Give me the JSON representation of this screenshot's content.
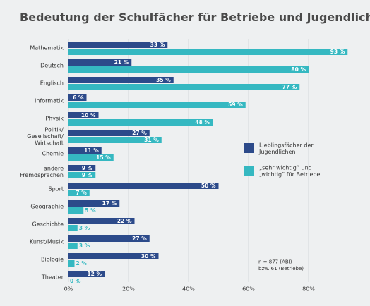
{
  "chart_data": {
    "type": "bar",
    "title": "Bedeutung der Schulfächer für Betriebe und Jugendliche",
    "categories": [
      "Mathematik",
      "Deutsch",
      "Englisch",
      "Informatik",
      "Physik",
      "Politik/\nGesellschaft/\nWirtschaft",
      "Chemie",
      "andere\nFremdsprachen",
      "Sport",
      "Geographie",
      "Geschichte",
      "Kunst/Musik",
      "Biologie",
      "Theater"
    ],
    "series": [
      {
        "name": "Lieblingsfächer der\nJugendlichen",
        "color": "#2c4a8a",
        "values": [
          33,
          21,
          35,
          6,
          10,
          27,
          11,
          9,
          50,
          17,
          22,
          27,
          30,
          12
        ],
        "value_labels": [
          "33 %",
          "21 %",
          "35 %",
          "6 %",
          "10 %",
          "27 %",
          "11 %",
          "9 %",
          "50 %",
          "17 %",
          "22 %",
          "27 %",
          "30 %",
          "12 %"
        ]
      },
      {
        "name": "„sehr wichtig“ und\n„wichtig“ für Betriebe",
        "color": "#35b8c1",
        "values": [
          93,
          80,
          77,
          59,
          48,
          31,
          15,
          9,
          7,
          5,
          3,
          3,
          2,
          0
        ],
        "value_labels": [
          "93 %",
          "80 %",
          "77 %",
          "59 %",
          "48 %",
          "31 %",
          "15 %",
          "9 %",
          "7 %",
          "5 %",
          "3 %",
          "3 %",
          "2 %",
          "0 %"
        ]
      }
    ],
    "xlim": [
      0,
      100
    ],
    "xticks": [
      {
        "value": 0,
        "label": "0%"
      },
      {
        "value": 20,
        "label": "20%"
      },
      {
        "value": 40,
        "label": "40%"
      },
      {
        "value": 60,
        "label": "60%"
      },
      {
        "value": 80,
        "label": "80%"
      }
    ],
    "grid": true,
    "note": "n = 877 (ABI)\nbzw. 61 (Betriebe)"
  }
}
